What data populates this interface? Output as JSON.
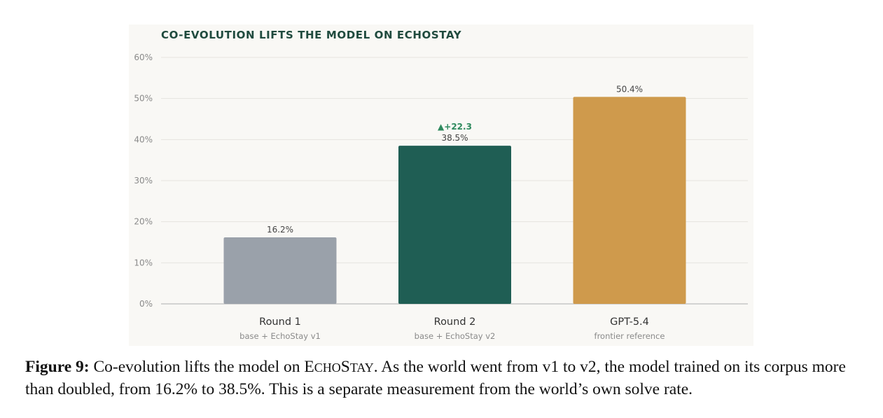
{
  "chart_data": {
    "type": "bar",
    "title": "CO-EVOLUTION LIFTS THE MODEL ON ECHOSTAY",
    "categories": [
      "Round 1",
      "Round 2",
      "GPT-5.4"
    ],
    "subtitles": [
      "base + EchoStay v1",
      "base + EchoStay v2",
      "frontier reference"
    ],
    "values": [
      16.2,
      38.5,
      50.4
    ],
    "value_labels": [
      "16.2%",
      "38.5%",
      "50.4%"
    ],
    "colors": [
      "#9aa1aa",
      "#1f5e54",
      "#cf9a4c"
    ],
    "annotations": [
      {
        "category": "Round 2",
        "text": "▲+22.3",
        "color": "#2f8a5e"
      }
    ],
    "yticks": [
      "0%",
      "10%",
      "20%",
      "30%",
      "40%",
      "50%",
      "60%"
    ],
    "ylim": [
      0,
      60
    ],
    "grid": true,
    "xlabel": "",
    "ylabel": ""
  },
  "caption": {
    "figure_label": "Figure 9:",
    "text_before": "Co-evolution lifts the model on ",
    "name_parts": [
      "E",
      "CHO",
      "S",
      "TAY"
    ],
    "text_after": ". As the world went from v1 to v2, the model trained on its corpus more than doubled, from 16.2% to 38.5%. This is a separate measurement from the world’s own solve rate."
  }
}
